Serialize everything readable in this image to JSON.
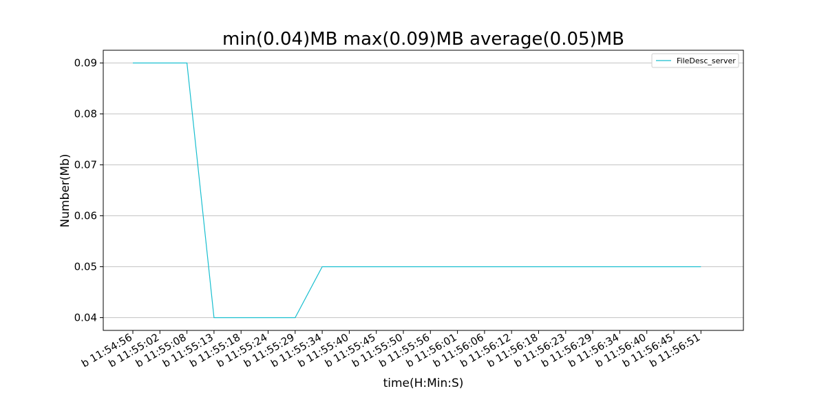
{
  "chart_data": {
    "type": "line",
    "title": "min(0.04)MB max(0.09)MB average(0.05)MB",
    "xlabel": "time(H:Min:S)",
    "ylabel": "Number(Mb)",
    "x_tick_labels": [
      "b 11:54:56",
      "b 11:55:02",
      "b 11:55:08",
      "b 11:55:13",
      "b 11:55:18",
      "b 11:55:24",
      "b 11:55:29",
      "b 11:55:34",
      "b 11:55:40",
      "b 11:55:45",
      "b 11:55:50",
      "b 11:55:56",
      "b 11:56:01",
      "b 11:56:06",
      "b 11:56:12",
      "b 11:56:18",
      "b 11:56:23",
      "b 11:56:29",
      "b 11:56:34",
      "b 11:56:40",
      "b 11:56:45",
      "b 11:56:51"
    ],
    "y_ticks": [
      0.04,
      0.05,
      0.06,
      0.07,
      0.08,
      0.09
    ],
    "y_tick_labels": [
      "0.04",
      "0.05",
      "0.06",
      "0.07",
      "0.08",
      "0.09"
    ],
    "ylim": [
      0.0375,
      0.0925
    ],
    "grid": "horizontal",
    "legend_position": "top-right",
    "series": [
      {
        "name": "FileDesc_server",
        "color": "#17becf",
        "x": [
          "b 11:54:56",
          "b 11:55:02",
          "b 11:55:08",
          "b 11:55:13",
          "b 11:55:18",
          "b 11:55:24",
          "b 11:55:29",
          "b 11:55:34",
          "b 11:55:40",
          "b 11:55:45",
          "b 11:55:50",
          "b 11:55:56",
          "b 11:56:01",
          "b 11:56:06",
          "b 11:56:12",
          "b 11:56:18",
          "b 11:56:23",
          "b 11:56:29",
          "b 11:56:34",
          "b 11:56:40",
          "b 11:56:45",
          "b 11:56:51"
        ],
        "values": [
          0.09,
          0.09,
          0.09,
          0.04,
          0.04,
          0.04,
          0.04,
          0.05,
          0.05,
          0.05,
          0.05,
          0.05,
          0.05,
          0.05,
          0.05,
          0.05,
          0.05,
          0.05,
          0.05,
          0.05,
          0.05,
          0.05
        ]
      }
    ]
  }
}
